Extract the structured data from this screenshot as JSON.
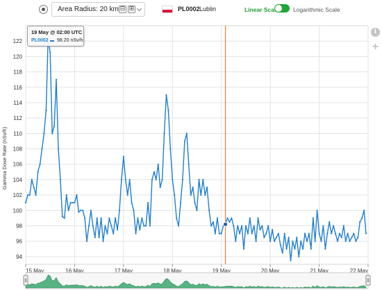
{
  "toolbar": {
    "radius_label": "Area Radius:",
    "radius_value": "20 km",
    "minus_symbol": "⊟",
    "plus_symbol": "⊞",
    "station_id": "PL0002",
    "station_city": "Lublin",
    "flag_colors": [
      "#ffffff",
      "#dc143c"
    ],
    "linear_label": "Linear Scale",
    "log_label": "Logarithmic Scale",
    "scale_toggle_linear": true,
    "accent_color": "#1fa534"
  },
  "side_icons": {
    "info": "info-icon",
    "add": "plus-icon",
    "info_glyph": "i",
    "add_glyph": "+"
  },
  "tooltip": {
    "title": "19 May @ 02:00 UTC",
    "series": "PL0002",
    "value": "98.20",
    "unit": "nSv/h"
  },
  "chart_data": {
    "type": "line",
    "ylabel": "Gamma Dose Rate (nSv/h)",
    "xlabel": "",
    "ylim": [
      93,
      124
    ],
    "yticks": [
      94,
      96,
      98,
      100,
      102,
      104,
      106,
      108,
      110,
      112,
      114,
      116,
      118,
      120,
      122
    ],
    "xlim": [
      0,
      7
    ],
    "xticks": [
      {
        "x": 0,
        "label": "15 May"
      },
      {
        "x": 1,
        "label": "16 May"
      },
      {
        "x": 2,
        "label": "17 May"
      },
      {
        "x": 3,
        "label": "18 May"
      },
      {
        "x": 4,
        "label": "19 May"
      },
      {
        "x": 5,
        "label": "20 May"
      },
      {
        "x": 6,
        "label": "21 May"
      },
      {
        "x": 7,
        "label": "22 May"
      }
    ],
    "x_unit": "days since 15 May 00:00 UTC",
    "grid": true,
    "line_color": "#1f7fd1",
    "highlight": {
      "x": 4.083,
      "y": 98.2,
      "color": "#ff7a2f"
    },
    "series": [
      {
        "name": "PL0002",
        "values": [
          [
            0.0,
            101.0
          ],
          [
            0.042,
            102.0
          ],
          [
            0.083,
            102.0
          ],
          [
            0.125,
            104.0
          ],
          [
            0.167,
            103.0
          ],
          [
            0.208,
            102.0
          ],
          [
            0.25,
            105.0
          ],
          [
            0.292,
            106.0
          ],
          [
            0.333,
            108.0
          ],
          [
            0.375,
            110.0
          ],
          [
            0.417,
            113.0
          ],
          [
            0.458,
            122.5
          ],
          [
            0.5,
            120.5
          ],
          [
            0.542,
            110.0
          ],
          [
            0.583,
            111.0
          ],
          [
            0.625,
            117.0
          ],
          [
            0.667,
            108.0
          ],
          [
            0.708,
            104.0
          ],
          [
            0.75,
            99.2
          ],
          [
            0.792,
            99.0
          ],
          [
            0.833,
            102.0
          ],
          [
            0.875,
            100.0
          ],
          [
            0.917,
            101.0
          ],
          [
            0.958,
            101.0
          ],
          [
            1.0,
            101.0
          ],
          [
            1.042,
            102.0
          ],
          [
            1.083,
            99.8
          ],
          [
            1.125,
            100.0
          ],
          [
            1.167,
            100.0
          ],
          [
            1.208,
            99.0
          ],
          [
            1.25,
            96.0
          ],
          [
            1.292,
            98.0
          ],
          [
            1.333,
            100.0
          ],
          [
            1.375,
            98.0
          ],
          [
            1.417,
            96.5
          ],
          [
            1.458,
            99.0
          ],
          [
            1.5,
            96.5
          ],
          [
            1.542,
            99.0
          ],
          [
            1.583,
            96.0
          ],
          [
            1.625,
            98.0
          ],
          [
            1.667,
            97.0
          ],
          [
            1.708,
            99.0
          ],
          [
            1.75,
            98.0
          ],
          [
            1.792,
            97.0
          ],
          [
            1.833,
            99.0
          ],
          [
            1.875,
            97.5
          ],
          [
            1.917,
            100.0
          ],
          [
            1.958,
            104.0
          ],
          [
            2.0,
            107.0
          ],
          [
            2.042,
            104.0
          ],
          [
            2.083,
            102.0
          ],
          [
            2.125,
            104.0
          ],
          [
            2.167,
            101.0
          ],
          [
            2.208,
            100.0
          ],
          [
            2.25,
            97.0
          ],
          [
            2.292,
            99.0
          ],
          [
            2.333,
            97.5
          ],
          [
            2.375,
            99.0
          ],
          [
            2.417,
            98.0
          ],
          [
            2.458,
            98.0
          ],
          [
            2.5,
            101.0
          ],
          [
            2.542,
            98.0
          ],
          [
            2.583,
            104.0
          ],
          [
            2.625,
            105.0
          ],
          [
            2.667,
            104.0
          ],
          [
            2.708,
            106.0
          ],
          [
            2.75,
            103.0
          ],
          [
            2.792,
            104.0
          ],
          [
            2.833,
            110.0
          ],
          [
            2.875,
            115.0
          ],
          [
            2.917,
            113.0
          ],
          [
            2.958,
            108.0
          ],
          [
            3.0,
            104.0
          ],
          [
            3.042,
            102.0
          ],
          [
            3.083,
            99.0
          ],
          [
            3.125,
            98.0
          ],
          [
            3.167,
            101.0
          ],
          [
            3.208,
            104.0
          ],
          [
            3.25,
            109.0
          ],
          [
            3.292,
            110.0
          ],
          [
            3.333,
            106.0
          ],
          [
            3.375,
            102.0
          ],
          [
            3.417,
            103.0
          ],
          [
            3.458,
            101.0
          ],
          [
            3.5,
            100.0
          ],
          [
            3.542,
            104.0
          ],
          [
            3.583,
            102.0
          ],
          [
            3.625,
            104.0
          ],
          [
            3.667,
            102.0
          ],
          [
            3.708,
            103.0
          ],
          [
            3.75,
            100.0
          ],
          [
            3.792,
            98.0
          ],
          [
            3.833,
            98.5
          ],
          [
            3.875,
            97.0
          ],
          [
            3.917,
            99.0
          ],
          [
            3.958,
            97.0
          ],
          [
            4.0,
            97.0
          ],
          [
            4.042,
            98.0
          ],
          [
            4.083,
            98.2
          ],
          [
            4.125,
            99.0
          ],
          [
            4.167,
            98.5
          ],
          [
            4.208,
            99.0
          ],
          [
            4.25,
            98.0
          ],
          [
            4.292,
            96.0
          ],
          [
            4.333,
            98.0
          ],
          [
            4.375,
            97.0
          ],
          [
            4.417,
            98.0
          ],
          [
            4.458,
            95.0
          ],
          [
            4.5,
            98.0
          ],
          [
            4.542,
            97.0
          ],
          [
            4.583,
            99.0
          ],
          [
            4.625,
            97.0
          ],
          [
            4.667,
            98.0
          ],
          [
            4.708,
            96.0
          ],
          [
            4.75,
            99.0
          ],
          [
            4.792,
            97.5
          ],
          [
            4.833,
            98.0
          ],
          [
            4.875,
            96.5
          ],
          [
            4.917,
            97.0
          ],
          [
            4.958,
            98.0
          ],
          [
            5.0,
            96.0
          ],
          [
            5.042,
            97.5
          ],
          [
            5.083,
            96.0
          ],
          [
            5.125,
            96.5
          ],
          [
            5.167,
            97.0
          ],
          [
            5.208,
            95.5
          ],
          [
            5.25,
            94.5
          ],
          [
            5.292,
            97.0
          ],
          [
            5.333,
            95.0
          ],
          [
            5.375,
            96.5
          ],
          [
            5.417,
            93.5
          ],
          [
            5.458,
            96.0
          ],
          [
            5.5,
            95.0
          ],
          [
            5.542,
            96.5
          ],
          [
            5.583,
            94.0
          ],
          [
            5.625,
            96.0
          ],
          [
            5.667,
            95.0
          ],
          [
            5.708,
            97.0
          ],
          [
            5.75,
            96.0
          ],
          [
            5.792,
            97.0
          ],
          [
            5.833,
            95.0
          ],
          [
            5.875,
            99.0
          ],
          [
            5.917,
            96.0
          ],
          [
            5.958,
            100.0
          ],
          [
            6.0,
            97.0
          ],
          [
            6.042,
            96.0
          ],
          [
            6.083,
            98.0
          ],
          [
            6.125,
            95.0
          ],
          [
            6.167,
            97.0
          ],
          [
            6.208,
            98.5
          ],
          [
            6.25,
            97.0
          ],
          [
            6.292,
            98.0
          ],
          [
            6.333,
            97.0
          ],
          [
            6.375,
            96.0
          ],
          [
            6.417,
            97.0
          ],
          [
            6.458,
            96.5
          ],
          [
            6.5,
            98.0
          ],
          [
            6.542,
            96.0
          ],
          [
            6.583,
            97.0
          ],
          [
            6.625,
            96.0
          ],
          [
            6.667,
            96.5
          ],
          [
            6.708,
            97.0
          ],
          [
            6.75,
            96.0
          ],
          [
            6.792,
            96.5
          ],
          [
            6.833,
            98.5
          ],
          [
            6.875,
            99.0
          ],
          [
            6.917,
            100.0
          ],
          [
            6.958,
            97.0
          ]
        ]
      }
    ],
    "navigator": {
      "fill_color": "#3aa76d",
      "x_start": 0,
      "x_end": 7
    }
  }
}
